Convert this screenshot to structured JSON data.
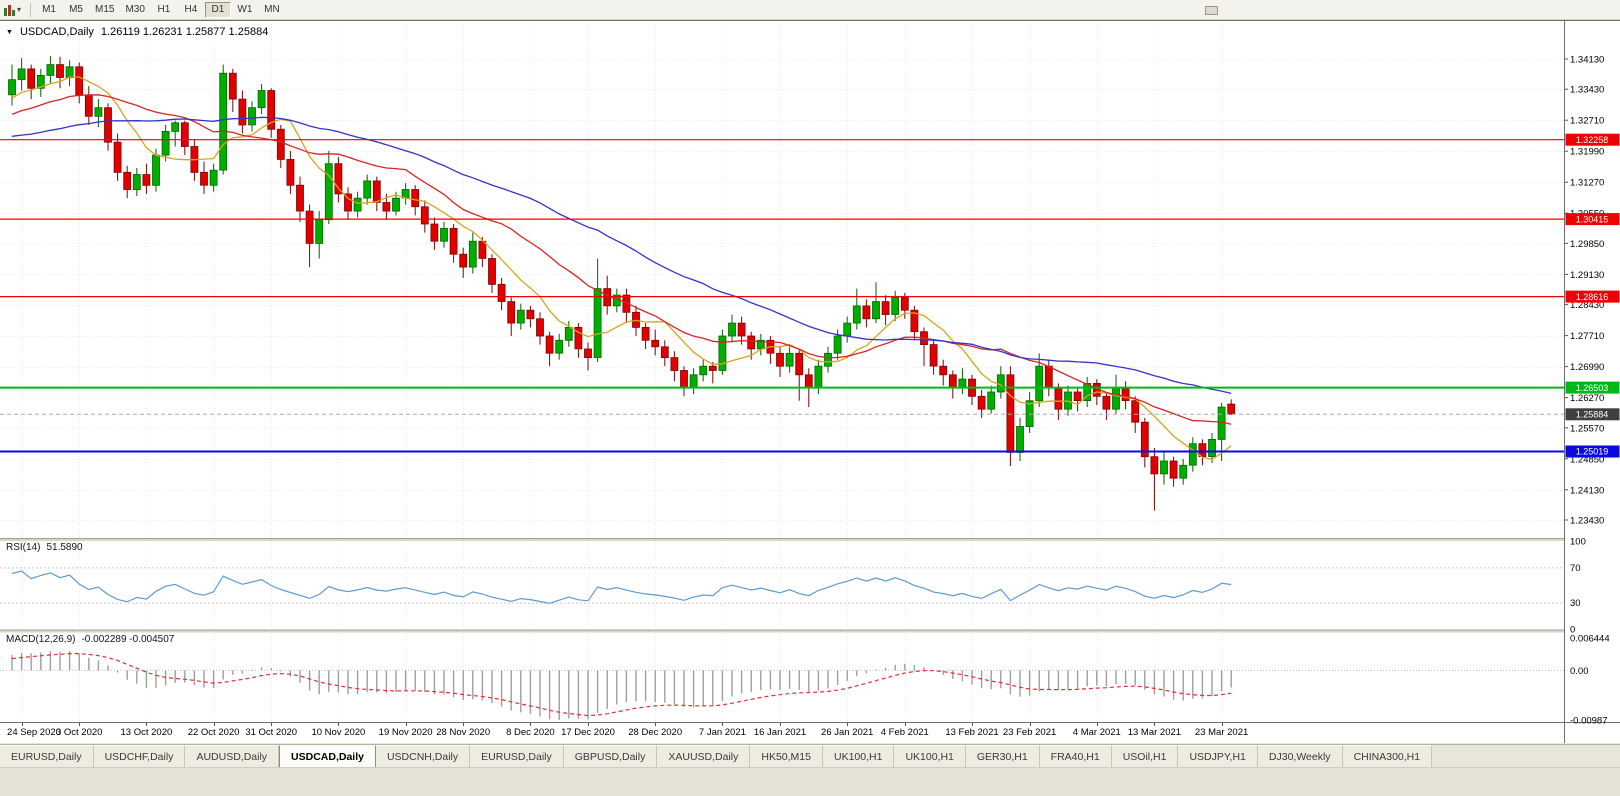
{
  "toolbar": {
    "timeframes": [
      "M1",
      "M5",
      "M15",
      "M30",
      "H1",
      "H4",
      "D1",
      "W1",
      "MN"
    ],
    "active": "D1"
  },
  "chart_header": {
    "symbol_period": "USDCAD,Daily",
    "ohlc": "1.26119 1.26231 1.25877 1.25884"
  },
  "chart_data": {
    "type": "candlestick",
    "symbol": "USDCAD",
    "period": "Daily",
    "last_ohlc": {
      "open": 1.26119,
      "high": 1.26231,
      "low": 1.25877,
      "close": 1.25884
    },
    "price_ticks": [
      {
        "v": 1.3413,
        "label": "1.34130"
      },
      {
        "v": 1.3343,
        "label": "1.33430"
      },
      {
        "v": 1.3271,
        "label": "1.32710"
      },
      {
        "v": 1.3199,
        "label": "1.31990"
      },
      {
        "v": 1.3127,
        "label": "1.31270"
      },
      {
        "v": 1.3055,
        "label": "1.30550"
      },
      {
        "v": 1.2985,
        "label": "1.29850"
      },
      {
        "v": 1.2913,
        "label": "1.29130"
      },
      {
        "v": 1.2843,
        "label": "1.28430"
      },
      {
        "v": 1.2771,
        "label": "1.27710"
      },
      {
        "v": 1.2699,
        "label": "1.26990"
      },
      {
        "v": 1.2627,
        "label": "1.26270"
      },
      {
        "v": 1.2557,
        "label": "1.25570"
      },
      {
        "v": 1.2485,
        "label": "1.24850"
      },
      {
        "v": 1.2413,
        "label": "1.24130"
      },
      {
        "v": 1.2343,
        "label": "1.23430"
      }
    ],
    "date_ticks": [
      {
        "i": 1,
        "label": "24 Sep 2020"
      },
      {
        "i": 7,
        "label": "3 Oct 2020"
      },
      {
        "i": 14,
        "label": "13 Oct 2020"
      },
      {
        "i": 21,
        "label": "22 Oct 2020"
      },
      {
        "i": 27,
        "label": "31 Oct 2020"
      },
      {
        "i": 34,
        "label": "10 Nov 2020"
      },
      {
        "i": 41,
        "label": "19 Nov 2020"
      },
      {
        "i": 47,
        "label": "28 Nov 2020"
      },
      {
        "i": 54,
        "label": "8 Dec 2020"
      },
      {
        "i": 60,
        "label": "17 Dec 2020"
      },
      {
        "i": 67,
        "label": "28 Dec 2020"
      },
      {
        "i": 74,
        "label": "7 Jan 2021"
      },
      {
        "i": 80,
        "label": "16 Jan 2021"
      },
      {
        "i": 87,
        "label": "26 Jan 2021"
      },
      {
        "i": 93,
        "label": "4 Feb 2021"
      },
      {
        "i": 100,
        "label": "13 Feb 2021"
      },
      {
        "i": 106,
        "label": "23 Feb 2021"
      },
      {
        "i": 113,
        "label": "4 Mar 2021"
      },
      {
        "i": 119,
        "label": "13 Mar 2021"
      },
      {
        "i": 126,
        "label": "23 Mar 2021"
      }
    ],
    "pre_closes": [
      1.33,
      1.328,
      1.325,
      1.322,
      1.32,
      1.323,
      1.319,
      1.316,
      1.318,
      1.315,
      1.312,
      1.314,
      1.311,
      1.313,
      1.315,
      1.317,
      1.319,
      1.317,
      1.32,
      1.322,
      1.319,
      1.322,
      1.324,
      1.322,
      1.325,
      1.327,
      1.325,
      1.328,
      1.326,
      1.329,
      1.33,
      1.328,
      1.326,
      1.328,
      1.33,
      1.332,
      1.334,
      1.333,
      1.331,
      1.333
    ],
    "candles": [
      [
        1.333,
        1.34,
        1.3305,
        1.3365
      ],
      [
        1.3365,
        1.3415,
        1.334,
        1.339
      ],
      [
        1.339,
        1.34,
        1.332,
        1.3345
      ],
      [
        1.3345,
        1.339,
        1.3325,
        1.3375
      ],
      [
        1.3375,
        1.342,
        1.3355,
        1.34
      ],
      [
        1.34,
        1.3418,
        1.3345,
        1.337
      ],
      [
        1.337,
        1.341,
        1.335,
        1.3395
      ],
      [
        1.3395,
        1.3405,
        1.331,
        1.333
      ],
      [
        1.333,
        1.335,
        1.326,
        1.328
      ],
      [
        1.328,
        1.332,
        1.3255,
        1.33
      ],
      [
        1.33,
        1.331,
        1.32,
        1.322
      ],
      [
        1.322,
        1.324,
        1.313,
        1.315
      ],
      [
        1.315,
        1.3165,
        1.309,
        1.311
      ],
      [
        1.311,
        1.316,
        1.3095,
        1.3145
      ],
      [
        1.3145,
        1.317,
        1.31,
        1.312
      ],
      [
        1.312,
        1.3205,
        1.3105,
        1.319
      ],
      [
        1.319,
        1.326,
        1.3175,
        1.3245
      ],
      [
        1.3245,
        1.327,
        1.321,
        1.3265
      ],
      [
        1.3265,
        1.327,
        1.319,
        1.321
      ],
      [
        1.321,
        1.3225,
        1.313,
        1.315
      ],
      [
        1.315,
        1.3175,
        1.31,
        1.312
      ],
      [
        1.312,
        1.317,
        1.3105,
        1.3155
      ],
      [
        1.3155,
        1.34,
        1.3145,
        1.338
      ],
      [
        1.338,
        1.339,
        1.329,
        1.332
      ],
      [
        1.332,
        1.334,
        1.324,
        1.326
      ],
      [
        1.326,
        1.3315,
        1.3245,
        1.33
      ],
      [
        1.33,
        1.3355,
        1.3285,
        1.334
      ],
      [
        1.334,
        1.3345,
        1.323,
        1.325
      ],
      [
        1.325,
        1.326,
        1.316,
        1.318
      ],
      [
        1.318,
        1.32,
        1.31,
        1.312
      ],
      [
        1.312,
        1.314,
        1.3035,
        1.306
      ],
      [
        1.306,
        1.3075,
        1.293,
        1.2985
      ],
      [
        1.2985,
        1.306,
        1.295,
        1.304
      ],
      [
        1.304,
        1.32,
        1.303,
        1.317
      ],
      [
        1.317,
        1.3185,
        1.308,
        1.31
      ],
      [
        1.31,
        1.3115,
        1.304,
        1.306
      ],
      [
        1.306,
        1.3105,
        1.3045,
        1.309
      ],
      [
        1.309,
        1.3145,
        1.3075,
        1.313
      ],
      [
        1.313,
        1.314,
        1.306,
        1.308
      ],
      [
        1.308,
        1.31,
        1.304,
        1.306
      ],
      [
        1.306,
        1.3105,
        1.305,
        1.309
      ],
      [
        1.309,
        1.3125,
        1.3075,
        1.311
      ],
      [
        1.311,
        1.312,
        1.305,
        1.307
      ],
      [
        1.307,
        1.3085,
        1.301,
        1.303
      ],
      [
        1.303,
        1.3045,
        1.297,
        1.299
      ],
      [
        1.299,
        1.3035,
        1.2975,
        1.302
      ],
      [
        1.302,
        1.303,
        1.294,
        1.296
      ],
      [
        1.296,
        1.2975,
        1.2905,
        1.293
      ],
      [
        1.293,
        1.301,
        1.2915,
        1.299
      ],
      [
        1.299,
        1.3,
        1.293,
        1.295
      ],
      [
        1.295,
        1.296,
        1.287,
        1.289
      ],
      [
        1.289,
        1.2905,
        1.283,
        1.285
      ],
      [
        1.285,
        1.286,
        1.277,
        1.28
      ],
      [
        1.28,
        1.2845,
        1.2785,
        1.283
      ],
      [
        1.283,
        1.284,
        1.279,
        1.281
      ],
      [
        1.281,
        1.2825,
        1.275,
        1.277
      ],
      [
        1.277,
        1.278,
        1.27,
        1.273
      ],
      [
        1.273,
        1.2775,
        1.2715,
        1.276
      ],
      [
        1.276,
        1.2805,
        1.2745,
        1.279
      ],
      [
        1.279,
        1.28,
        1.272,
        1.274
      ],
      [
        1.274,
        1.2755,
        1.269,
        1.272
      ],
      [
        1.272,
        1.295,
        1.271,
        1.288
      ],
      [
        1.288,
        1.291,
        1.282,
        1.284
      ],
      [
        1.284,
        1.288,
        1.2825,
        1.2865
      ],
      [
        1.2865,
        1.288,
        1.28,
        1.2825
      ],
      [
        1.2825,
        1.284,
        1.277,
        1.279
      ],
      [
        1.279,
        1.28,
        1.274,
        1.276
      ],
      [
        1.276,
        1.2785,
        1.2725,
        1.2745
      ],
      [
        1.2745,
        1.276,
        1.27,
        1.272
      ],
      [
        1.272,
        1.2735,
        1.2665,
        1.269
      ],
      [
        1.269,
        1.27,
        1.263,
        1.265
      ],
      [
        1.265,
        1.2695,
        1.2635,
        1.268
      ],
      [
        1.268,
        1.2715,
        1.2665,
        1.27
      ],
      [
        1.27,
        1.271,
        1.266,
        1.269
      ],
      [
        1.269,
        1.2785,
        1.268,
        1.277
      ],
      [
        1.277,
        1.282,
        1.2755,
        1.28
      ],
      [
        1.28,
        1.2815,
        1.275,
        1.277
      ],
      [
        1.277,
        1.278,
        1.2715,
        1.274
      ],
      [
        1.274,
        1.2775,
        1.2725,
        1.276
      ],
      [
        1.276,
        1.277,
        1.2705,
        1.273
      ],
      [
        1.273,
        1.2745,
        1.2675,
        1.27
      ],
      [
        1.27,
        1.2745,
        1.2685,
        1.273
      ],
      [
        1.273,
        1.274,
        1.262,
        1.268
      ],
      [
        1.268,
        1.2695,
        1.2605,
        1.265
      ],
      [
        1.265,
        1.2715,
        1.2635,
        1.27
      ],
      [
        1.27,
        1.2745,
        1.2685,
        1.273
      ],
      [
        1.273,
        1.2785,
        1.2715,
        1.277
      ],
      [
        1.277,
        1.2815,
        1.2755,
        1.28
      ],
      [
        1.28,
        1.288,
        1.2785,
        1.284
      ],
      [
        1.284,
        1.2855,
        1.279,
        1.281
      ],
      [
        1.281,
        1.2895,
        1.28,
        1.285
      ],
      [
        1.285,
        1.2865,
        1.2795,
        1.282
      ],
      [
        1.282,
        1.2875,
        1.2805,
        1.286
      ],
      [
        1.286,
        1.287,
        1.281,
        1.283
      ],
      [
        1.283,
        1.284,
        1.276,
        1.278
      ],
      [
        1.278,
        1.279,
        1.27,
        1.275
      ],
      [
        1.275,
        1.276,
        1.268,
        1.27
      ],
      [
        1.27,
        1.2715,
        1.2655,
        1.268
      ],
      [
        1.268,
        1.269,
        1.2625,
        1.265
      ],
      [
        1.265,
        1.2695,
        1.2635,
        1.267
      ],
      [
        1.267,
        1.268,
        1.261,
        1.263
      ],
      [
        1.263,
        1.2645,
        1.258,
        1.26
      ],
      [
        1.26,
        1.2655,
        1.259,
        1.264
      ],
      [
        1.264,
        1.27,
        1.2625,
        1.268
      ],
      [
        1.268,
        1.27,
        1.2468,
        1.25
      ],
      [
        1.25,
        1.258,
        1.248,
        1.256
      ],
      [
        1.256,
        1.264,
        1.2545,
        1.262
      ],
      [
        1.262,
        1.273,
        1.2605,
        1.27
      ],
      [
        1.27,
        1.2715,
        1.263,
        1.265
      ],
      [
        1.265,
        1.266,
        1.2575,
        1.26
      ],
      [
        1.26,
        1.2655,
        1.2585,
        1.264
      ],
      [
        1.264,
        1.265,
        1.2595,
        1.262
      ],
      [
        1.262,
        1.2675,
        1.2605,
        1.266
      ],
      [
        1.266,
        1.267,
        1.261,
        1.263
      ],
      [
        1.263,
        1.264,
        1.2575,
        1.26
      ],
      [
        1.26,
        1.268,
        1.259,
        1.265
      ],
      [
        1.265,
        1.2665,
        1.26,
        1.262
      ],
      [
        1.262,
        1.263,
        1.2545,
        1.257
      ],
      [
        1.257,
        1.258,
        1.2465,
        1.249
      ],
      [
        1.249,
        1.251,
        1.2365,
        1.245
      ],
      [
        1.245,
        1.25,
        1.2425,
        1.248
      ],
      [
        1.248,
        1.249,
        1.242,
        1.244
      ],
      [
        1.244,
        1.2485,
        1.2425,
        1.247
      ],
      [
        1.247,
        1.2535,
        1.2455,
        1.252
      ],
      [
        1.252,
        1.253,
        1.247,
        1.249
      ],
      [
        1.249,
        1.2545,
        1.2475,
        1.253
      ],
      [
        1.253,
        1.2615,
        1.248,
        1.2605
      ],
      [
        1.26119,
        1.26231,
        1.25877,
        1.25884
      ]
    ],
    "moving_averages": [
      {
        "name": "fast-ma",
        "period": 8,
        "color": "#d6a41e"
      },
      {
        "name": "mid-ma",
        "period": 20,
        "color": "#dd2222"
      },
      {
        "name": "slow-ma",
        "period": 40,
        "color": "#3333cc"
      }
    ],
    "hlines": [
      {
        "value": 1.32258,
        "label": "1.32258",
        "color": "#f00000",
        "width": 1.2
      },
      {
        "value": 1.30415,
        "label": "1.30415",
        "color": "#f00000",
        "width": 1.2
      },
      {
        "value": 1.28616,
        "label": "1.28616",
        "color": "#f00000",
        "width": 1.2
      },
      {
        "value": 1.26503,
        "label": "1.26503",
        "color": "#00b818",
        "width": 2
      },
      {
        "value": 1.25019,
        "label": "1.25019",
        "color": "#0a0adf",
        "width": 2
      }
    ],
    "bid": {
      "value": 1.25884,
      "label": "1.25884",
      "tag_color": "#3f3f3f",
      "line_color": "#aaaaaa"
    },
    "candle_colors": {
      "up_fill": "#00ad00",
      "up_stroke": "#006600",
      "down_fill": "#e00000",
      "down_stroke": "#7c0404"
    },
    "grid_color": "#ebebeb",
    "rsi": {
      "label": "RSI(14)",
      "period": 14,
      "value_text": "51.5890",
      "color": "#5b9bd5",
      "levels": [
        {
          "v": 100,
          "label": "100",
          "line": false
        },
        {
          "v": 70,
          "label": "70",
          "line": true
        },
        {
          "v": 30,
          "label": "30",
          "line": true
        },
        {
          "v": 0,
          "label": "0",
          "line": false
        }
      ]
    },
    "macd": {
      "label": "MACD(12,26,9)",
      "values_text": "-0.002289 -0.004507",
      "fast": 12,
      "slow": 26,
      "signal": 9,
      "hist_color": "#9e9e9e",
      "signal_color": "#e03030",
      "axis": [
        {
          "v": 0.006444,
          "label": "0.006444"
        },
        {
          "v": 0,
          "label": "0.00"
        },
        {
          "v": -0.00987,
          "label": "-0.00987"
        }
      ]
    }
  },
  "tabs": {
    "active_index": 3,
    "items": [
      "EURUSD,Daily",
      "USDCHF,Daily",
      "AUDUSD,Daily",
      "USDCAD,Daily",
      "USDCNH,Daily",
      "EURUSD,Daily",
      "GBPUSD,Daily",
      "XAUUSD,Daily",
      "HK50,M15",
      "UK100,H1",
      "UK100,H1",
      "GER30,H1",
      "FRA40,H1",
      "USOil,H1",
      "USDJPY,H1",
      "DJ30,Weekly",
      "CHINA300,H1"
    ]
  }
}
